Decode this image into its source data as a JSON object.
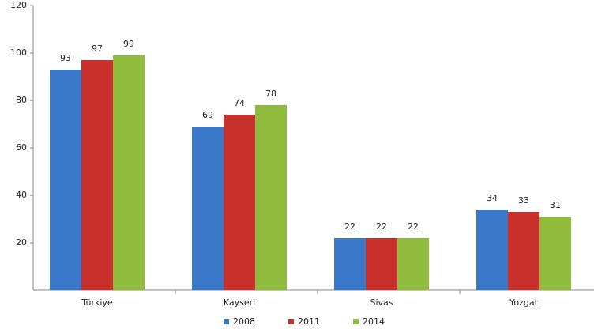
{
  "chart_data": {
    "type": "bar",
    "categories": [
      "Türkiye",
      "Kayseri",
      "Sivas",
      "Yozgat"
    ],
    "series": [
      {
        "name": "2008",
        "color": "#3a78c9",
        "values": [
          93,
          69,
          22,
          34
        ]
      },
      {
        "name": "2011",
        "color": "#c8302c",
        "values": [
          97,
          74,
          22,
          33
        ]
      },
      {
        "name": "2014",
        "color": "#8fbc3c",
        "values": [
          99,
          78,
          22,
          31
        ]
      }
    ],
    "ylim": [
      0,
      120
    ],
    "yticks": [
      20,
      40,
      60,
      80,
      100,
      120
    ],
    "grid": false,
    "legend": "bottom"
  }
}
